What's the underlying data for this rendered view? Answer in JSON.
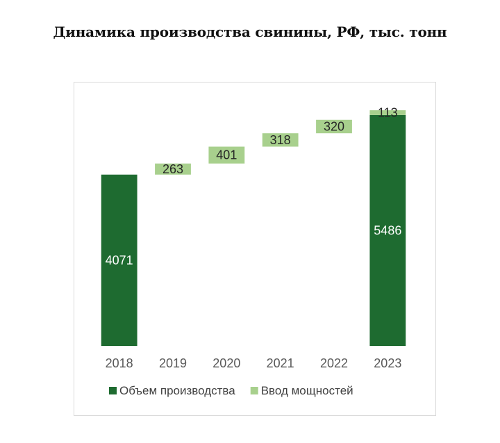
{
  "title": "Динамика производства свинины, РФ, тыс. тонн",
  "colors": {
    "total": "#1e6b30",
    "increment": "#a8d08d",
    "total_label": "#ffffff",
    "increment_label": "#262626"
  },
  "chart_data": {
    "type": "bar",
    "subtype": "waterfall",
    "categories": [
      "2018",
      "2019",
      "2020",
      "2021",
      "2022",
      "2023"
    ],
    "series": [
      {
        "name": "Объем производства",
        "values": [
          4071,
          null,
          null,
          null,
          null,
          5486
        ]
      },
      {
        "name": "Ввод мощностей",
        "values": [
          null,
          263,
          401,
          318,
          320,
          113
        ]
      }
    ],
    "data_labels": [
      "4071",
      "263",
      "401",
      "318",
      "320",
      "113",
      "5486"
    ],
    "title": "Динамика производства свинины, РФ, тыс. тонн",
    "xlabel": "",
    "ylabel": "",
    "grid": false,
    "legend_position": "bottom"
  }
}
